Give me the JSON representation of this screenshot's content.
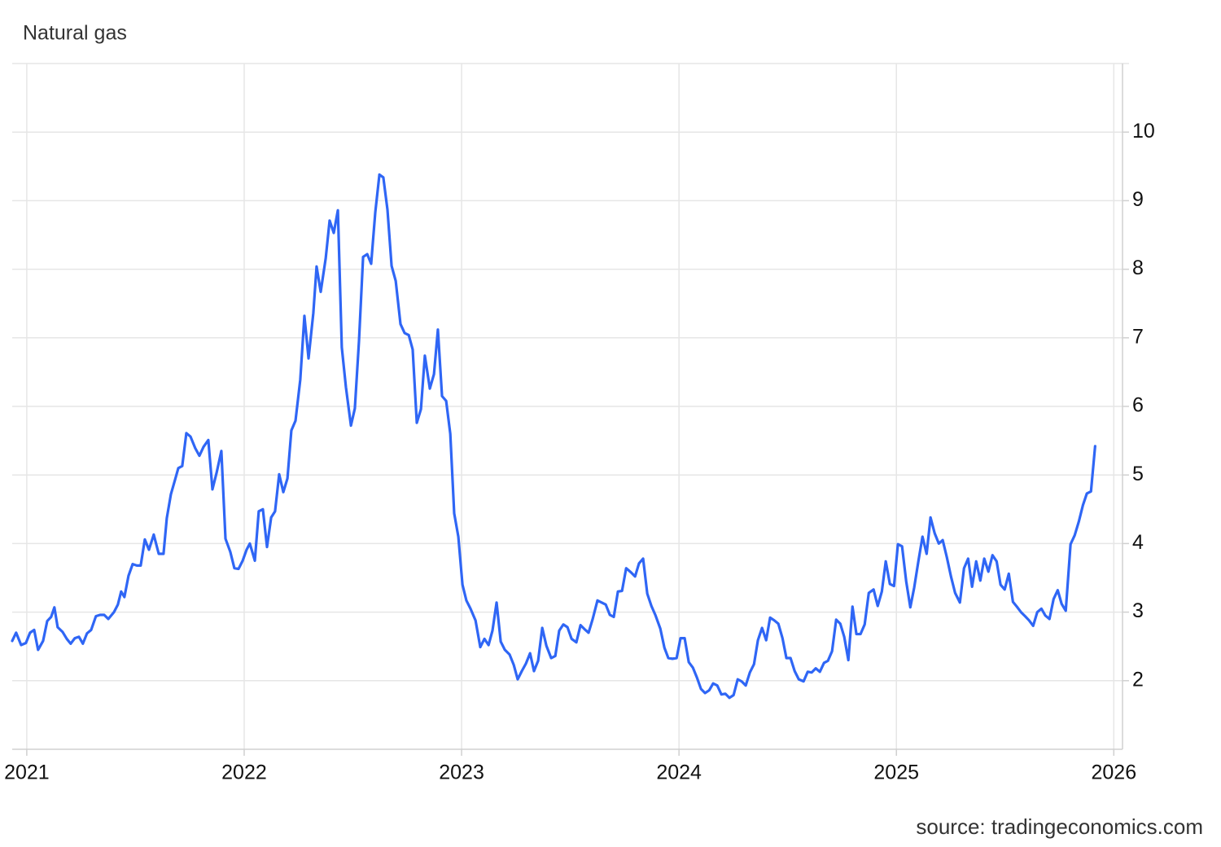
{
  "chart_data": {
    "type": "line",
    "title": "Natural gas",
    "source": "source: tradingeconomics.com",
    "x": [
      2020.933,
      2020.951,
      2020.974,
      2020.996,
      2021.015,
      2021.034,
      2021.052,
      2021.075,
      2021.094,
      2021.112,
      2021.127,
      2021.142,
      2021.165,
      2021.184,
      2021.202,
      2021.221,
      2021.24,
      2021.258,
      2021.277,
      2021.296,
      2021.318,
      2021.337,
      2021.356,
      2021.375,
      2021.401,
      2021.419,
      2021.434,
      2021.449,
      2021.468,
      2021.487,
      2021.506,
      2021.524,
      2021.543,
      2021.562,
      2021.584,
      2021.607,
      2021.629,
      2021.644,
      2021.663,
      2021.682,
      2021.697,
      2021.715,
      2021.734,
      2021.753,
      2021.775,
      2021.794,
      2021.813,
      2021.835,
      2021.854,
      2021.873,
      2021.895,
      2021.914,
      2021.936,
      2021.955,
      2021.974,
      2021.993,
      2022.011,
      2022.026,
      2022.049,
      2022.067,
      2022.086,
      2022.105,
      2022.124,
      2022.142,
      2022.161,
      2022.18,
      2022.199,
      2022.217,
      2022.236,
      2022.258,
      2022.277,
      2022.296,
      2022.318,
      2022.333,
      2022.352,
      2022.375,
      2022.393,
      2022.412,
      2022.431,
      2022.449,
      2022.468,
      2022.491,
      2022.509,
      2022.528,
      2022.547,
      2022.566,
      2022.584,
      2022.603,
      2022.622,
      2022.64,
      2022.659,
      2022.678,
      2022.697,
      2022.719,
      2022.738,
      2022.757,
      2022.775,
      2022.794,
      2022.813,
      2022.831,
      2022.854,
      2022.873,
      2022.891,
      2022.91,
      2022.929,
      2022.948,
      2022.966,
      2022.985,
      2023.004,
      2023.022,
      2023.041,
      2023.064,
      2023.086,
      2023.105,
      2023.124,
      2023.142,
      2023.161,
      2023.18,
      2023.199,
      2023.221,
      2023.24,
      2023.258,
      2023.277,
      2023.296,
      2023.315,
      2023.333,
      2023.352,
      2023.371,
      2023.39,
      2023.412,
      2023.431,
      2023.449,
      2023.468,
      2023.487,
      2023.506,
      2023.528,
      2023.547,
      2023.566,
      2023.584,
      2023.603,
      2023.625,
      2023.644,
      2023.663,
      2023.682,
      2023.7,
      2023.719,
      2023.738,
      2023.757,
      2023.779,
      2023.798,
      2023.816,
      2023.835,
      2023.854,
      2023.873,
      2023.891,
      2023.914,
      2023.933,
      2023.951,
      2023.97,
      2023.989,
      2024.007,
      2024.026,
      2024.045,
      2024.064,
      2024.082,
      2024.101,
      2024.12,
      2024.139,
      2024.157,
      2024.176,
      2024.195,
      2024.213,
      2024.232,
      2024.251,
      2024.27,
      2024.288,
      2024.307,
      2024.326,
      2024.345,
      2024.363,
      2024.382,
      2024.401,
      2024.419,
      2024.438,
      2024.457,
      2024.476,
      2024.494,
      2024.513,
      2024.532,
      2024.551,
      2024.573,
      2024.592,
      2024.61,
      2024.629,
      2024.648,
      2024.667,
      2024.685,
      2024.704,
      2024.723,
      2024.742,
      2024.76,
      2024.779,
      2024.798,
      2024.816,
      2024.835,
      2024.854,
      2024.873,
      2024.895,
      2024.914,
      2024.933,
      2024.951,
      2024.97,
      2024.989,
      2025.007,
      2025.026,
      2025.045,
      2025.064,
      2025.082,
      2025.101,
      2025.12,
      2025.139,
      2025.157,
      2025.176,
      2025.195,
      2025.213,
      2025.232,
      2025.251,
      2025.27,
      2025.292,
      2025.311,
      2025.33,
      2025.348,
      2025.367,
      2025.386,
      2025.404,
      2025.423,
      2025.442,
      2025.461,
      2025.479,
      2025.498,
      2025.517,
      2025.536,
      2025.554,
      2025.573,
      2025.592,
      2025.61,
      2025.629,
      2025.648,
      2025.667,
      2025.685,
      2025.704,
      2025.723,
      2025.742,
      2025.76,
      2025.779,
      2025.801,
      2025.82,
      2025.839,
      2025.858,
      2025.876,
      2025.895,
      2025.914
    ],
    "values": [
      2.58,
      2.7,
      2.52,
      2.55,
      2.7,
      2.74,
      2.45,
      2.58,
      2.87,
      2.93,
      3.07,
      2.78,
      2.71,
      2.61,
      2.54,
      2.62,
      2.64,
      2.54,
      2.69,
      2.74,
      2.94,
      2.96,
      2.96,
      2.9,
      3.0,
      3.11,
      3.3,
      3.22,
      3.53,
      3.7,
      3.68,
      3.68,
      4.06,
      3.91,
      4.13,
      3.85,
      3.85,
      4.37,
      4.72,
      4.93,
      5.1,
      5.13,
      5.61,
      5.56,
      5.39,
      5.28,
      5.41,
      5.51,
      4.79,
      5.03,
      5.35,
      4.07,
      3.88,
      3.64,
      3.63,
      3.75,
      3.91,
      4.0,
      3.75,
      4.47,
      4.5,
      3.95,
      4.38,
      4.47,
      5.01,
      4.75,
      4.95,
      5.65,
      5.79,
      6.39,
      7.32,
      6.7,
      7.36,
      8.04,
      7.67,
      8.16,
      8.71,
      8.53,
      8.86,
      6.86,
      6.28,
      5.72,
      5.97,
      6.95,
      8.18,
      8.22,
      8.08,
      8.83,
      9.38,
      9.34,
      8.87,
      8.05,
      7.83,
      7.2,
      7.07,
      7.04,
      6.83,
      5.76,
      5.96,
      6.74,
      6.26,
      6.47,
      7.12,
      6.15,
      6.08,
      5.6,
      4.44,
      4.1,
      3.4,
      3.17,
      3.05,
      2.88,
      2.49,
      2.61,
      2.52,
      2.73,
      3.14,
      2.57,
      2.45,
      2.38,
      2.23,
      2.02,
      2.14,
      2.25,
      2.4,
      2.14,
      2.29,
      2.77,
      2.51,
      2.33,
      2.36,
      2.73,
      2.82,
      2.78,
      2.61,
      2.56,
      2.81,
      2.75,
      2.7,
      2.9,
      3.17,
      3.14,
      3.11,
      2.96,
      2.93,
      3.3,
      3.31,
      3.64,
      3.58,
      3.52,
      3.71,
      3.78,
      3.27,
      3.09,
      2.96,
      2.76,
      2.48,
      2.33,
      2.32,
      2.33,
      2.62,
      2.62,
      2.27,
      2.19,
      2.05,
      1.88,
      1.82,
      1.86,
      1.96,
      1.93,
      1.8,
      1.81,
      1.75,
      1.79,
      2.02,
      1.99,
      1.93,
      2.12,
      2.24,
      2.59,
      2.77,
      2.59,
      2.92,
      2.88,
      2.83,
      2.62,
      2.33,
      2.33,
      2.14,
      2.02,
      1.99,
      2.13,
      2.12,
      2.18,
      2.13,
      2.26,
      2.29,
      2.43,
      2.89,
      2.83,
      2.64,
      2.3,
      3.08,
      2.68,
      2.68,
      2.82,
      3.28,
      3.33,
      3.09,
      3.3,
      3.74,
      3.41,
      3.38,
      3.99,
      3.96,
      3.45,
      3.07,
      3.36,
      3.74,
      4.1,
      3.85,
      4.38,
      4.15,
      4.0,
      4.05,
      3.8,
      3.52,
      3.28,
      3.14,
      3.64,
      3.78,
      3.37,
      3.74,
      3.46,
      3.78,
      3.59,
      3.83,
      3.74,
      3.4,
      3.33,
      3.56,
      3.15,
      3.08,
      3.0,
      2.94,
      2.88,
      2.8,
      3.0,
      3.05,
      2.95,
      2.9,
      3.19,
      3.32,
      3.12,
      3.02,
      3.99,
      4.12,
      4.32,
      4.56,
      4.73,
      4.76,
      5.42
    ],
    "color": "#2f66f5",
    "xlim": [
      2020.933,
      2026.04
    ],
    "xticks": [
      2021,
      2022,
      2023,
      2024,
      2025,
      2026
    ],
    "ylim": [
      1,
      11
    ],
    "yticks": [
      2,
      3,
      4,
      5,
      6,
      7,
      8,
      9,
      10
    ],
    "grid": true
  }
}
